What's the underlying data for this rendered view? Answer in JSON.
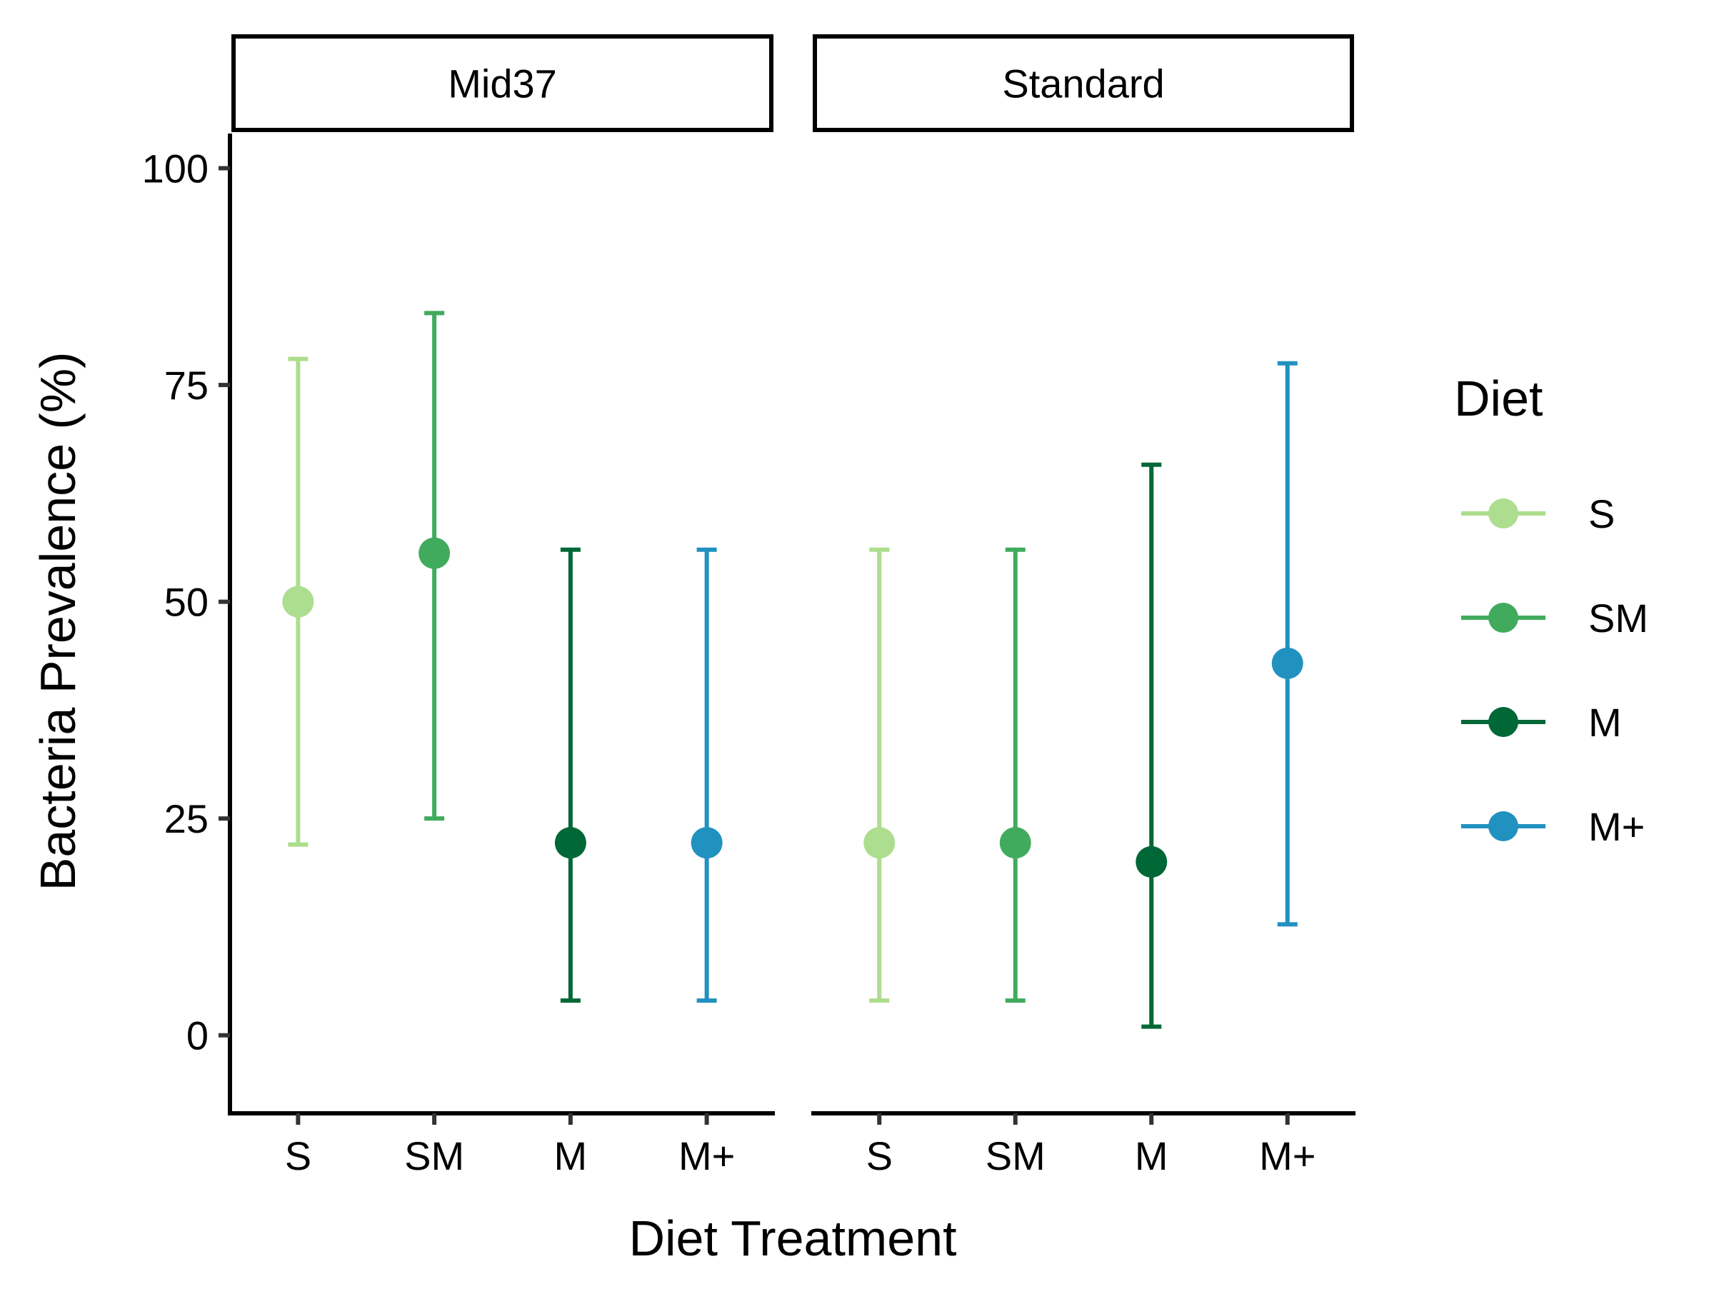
{
  "chart_data": {
    "type": "scatter",
    "subtype": "point with error bars, faceted",
    "xlabel": "Diet Treatment",
    "ylabel": "Bacteria Prevalence (%)",
    "ylim": [
      -9,
      104
    ],
    "y_ticks": [
      0,
      25,
      50,
      75,
      100
    ],
    "categories": [
      "S",
      "SM",
      "M",
      "M+"
    ],
    "legend": {
      "title": "Diet",
      "placement": "right",
      "entries": [
        "S",
        "SM",
        "M",
        "M+"
      ]
    },
    "colors": {
      "S": "#addd8e",
      "SM": "#41ab5d",
      "M": "#006837",
      "M+": "#2191c0"
    },
    "facets": [
      {
        "label": "Mid37",
        "points": [
          {
            "diet": "S",
            "y": 50,
            "lower": 22,
            "upper": 78
          },
          {
            "diet": "SM",
            "y": 55.6,
            "lower": 25,
            "upper": 83.3
          },
          {
            "diet": "M",
            "y": 22.2,
            "lower": 4,
            "upper": 56
          },
          {
            "diet": "M+",
            "y": 22.2,
            "lower": 4,
            "upper": 56
          }
        ]
      },
      {
        "label": "Standard",
        "points": [
          {
            "diet": "S",
            "y": 22.2,
            "lower": 4,
            "upper": 56
          },
          {
            "diet": "SM",
            "y": 22.2,
            "lower": 4,
            "upper": 56
          },
          {
            "diet": "M",
            "y": 20,
            "lower": 1,
            "upper": 65.8
          },
          {
            "diet": "M+",
            "y": 42.9,
            "lower": 12.8,
            "upper": 77.5
          }
        ]
      }
    ]
  }
}
